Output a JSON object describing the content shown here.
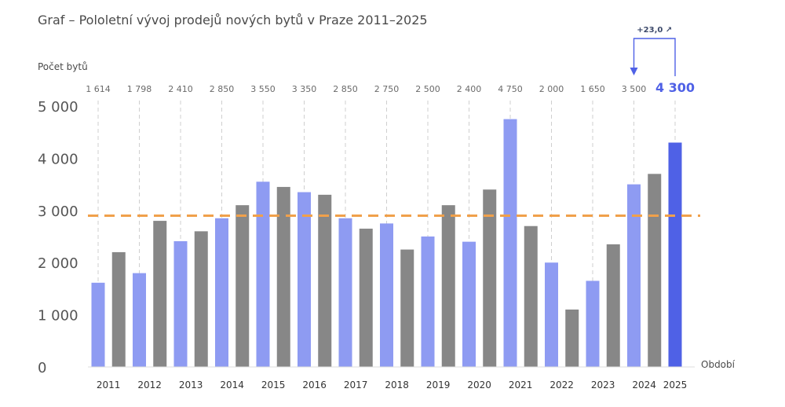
{
  "title": "Graf – Pololetní vývoj prodejů nových bytů v Praze 2011–2025",
  "colors": {
    "h1": "#8E9BF2",
    "h2": "#878787",
    "highlight": "#4F61E6",
    "reference": "#F0A04B",
    "grid": "#cfcfcf",
    "text": "#4a4a4a"
  },
  "chart_data": {
    "type": "bar",
    "title": "Graf – Pololetní vývoj prodejů nových bytů v Praze 2011–2025",
    "ylabel": "Počet bytů",
    "xlabel": "Období",
    "ylim": [
      0,
      5000
    ],
    "yticks": [
      "0",
      "1 000",
      "2 000",
      "3 000",
      "4 000",
      "5 000"
    ],
    "grid": "vertical dashed",
    "reference_line": 2900,
    "years": [
      "2011",
      "2012",
      "2013",
      "2014",
      "2015",
      "2016",
      "2017",
      "2018",
      "2019",
      "2020",
      "2021",
      "2022",
      "2023",
      "2024",
      "2025"
    ],
    "top_labels": [
      "1 614",
      "1 798",
      "2 410",
      "2 850",
      "3 550",
      "3 350",
      "2 850",
      "2 750",
      "2 500",
      "2 400",
      "4 750",
      "2 000",
      "1 650",
      "3 500",
      "4 300"
    ],
    "series": [
      {
        "values": [
          1614,
          1798,
          2410,
          2850,
          3550,
          3350,
          2850,
          2750,
          2500,
          2400,
          4750,
          2000,
          1650,
          3500,
          4300
        ]
      },
      {
        "values": [
          2200,
          2800,
          2600,
          3100,
          3450,
          3300,
          2650,
          2250,
          3100,
          3400,
          2700,
          1100,
          2350,
          3700,
          null
        ]
      }
    ],
    "annotation": {
      "text": "+23,0 ↗",
      "from_year": "2024",
      "to_year": "2025"
    }
  }
}
